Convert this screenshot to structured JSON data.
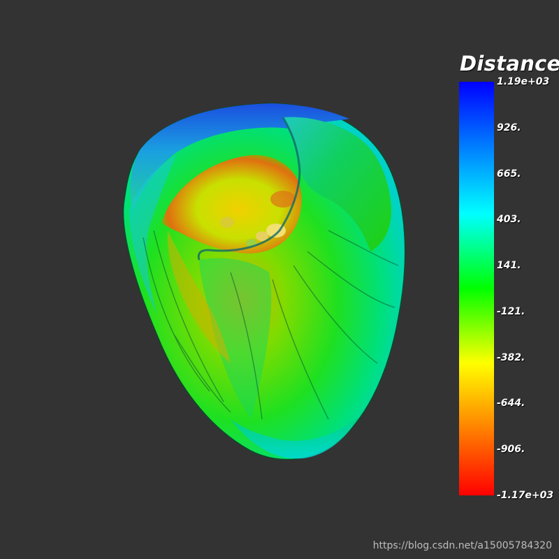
{
  "scalar_bar": {
    "title": "Distance",
    "range": [
      -1170,
      1190
    ],
    "colormap": "jet",
    "colors": [
      "#ff0000",
      "#ff8000",
      "#ffff00",
      "#00ff00",
      "#00ffff",
      "#0080ff",
      "#0000ff"
    ],
    "tick_labels": [
      "1.19e+03",
      "926.",
      "665.",
      "403.",
      "141.",
      "-121.",
      "-382.",
      "-644.",
      "-906.",
      "-1.17e+03"
    ]
  },
  "render": {
    "background": "#333333",
    "object": "heart-ventricle-surface"
  },
  "watermark": {
    "text": "https://blog.csdn.net/a15005784320"
  }
}
